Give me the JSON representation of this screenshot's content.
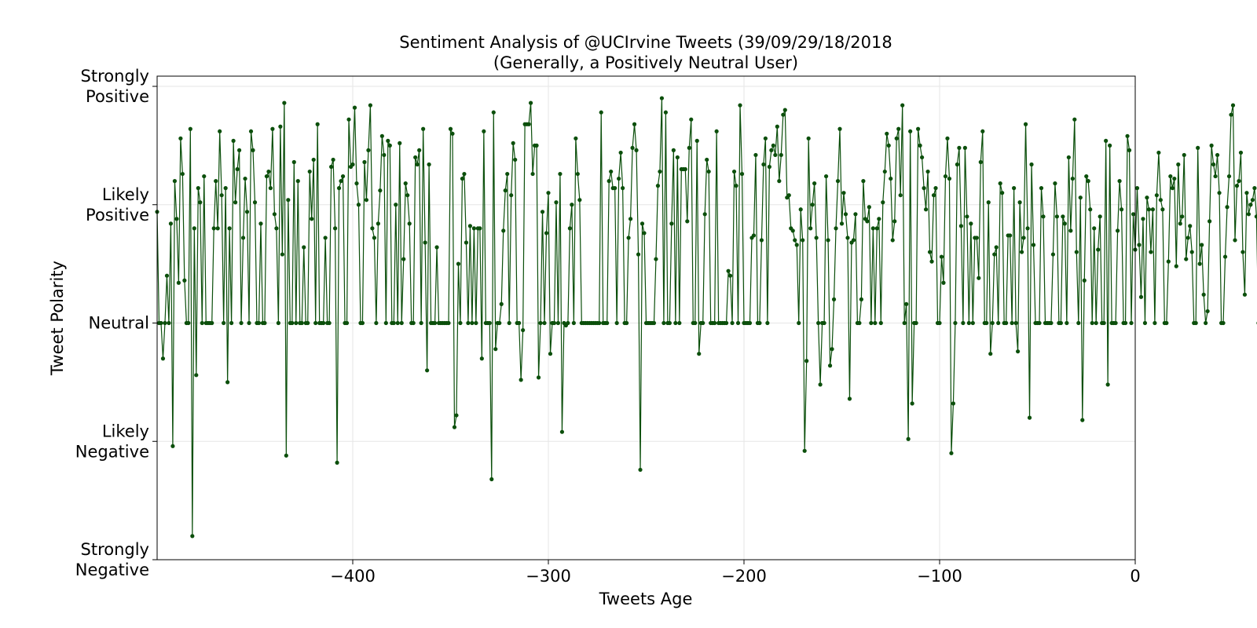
{
  "chart_data": {
    "type": "line",
    "title": "Sentiment Analysis of @UCIrvine Tweets (39/09/29/18/2018",
    "subtitle": "(Generally, a Positively Neutral User)",
    "xlabel": "Tweets Age",
    "ylabel": "Tweet Polarity",
    "xlim": [
      -500,
      0
    ],
    "ylim": [
      -1,
      1
    ],
    "grid": true,
    "line_color": "#0b4f0b",
    "x_ticks": [
      {
        "value": -400,
        "label": "−400"
      },
      {
        "value": -300,
        "label": "−300"
      },
      {
        "value": -200,
        "label": "−200"
      },
      {
        "value": -100,
        "label": "−100"
      },
      {
        "value": 0,
        "label": "0"
      }
    ],
    "y_ticks": [
      {
        "value": 1,
        "lines": [
          "Strongly",
          "Positive"
        ]
      },
      {
        "value": 0.5,
        "lines": [
          "Likely",
          "Positive"
        ]
      },
      {
        "value": 0,
        "lines": [
          "Neutral"
        ]
      },
      {
        "value": -0.5,
        "lines": [
          "Likely",
          "Negative"
        ]
      },
      {
        "value": -1,
        "lines": [
          "Strongly",
          "Negative"
        ]
      }
    ],
    "series": [
      {
        "x_start": -500,
        "x_step": 1,
        "values": [
          0.47,
          0,
          0,
          -0.15,
          0,
          0.2,
          0,
          0.42,
          -0.52,
          0.6,
          0.44,
          0.17,
          0.78,
          0.63,
          0.18,
          0,
          0,
          0.82,
          -0.9,
          0.4,
          -0.22,
          0.57,
          0.51,
          0,
          0.62,
          0,
          0,
          0,
          0,
          0.4,
          0.6,
          0.4,
          0.81,
          0.54,
          0,
          0.57,
          -0.25,
          0.4,
          0,
          0.77,
          0.51,
          0.65,
          0.73,
          0,
          0.36,
          0.61,
          0.47,
          0,
          0.81,
          0.73,
          0.51,
          0,
          0,
          0.42,
          0,
          0,
          0.62,
          0.64,
          0.57,
          0.82,
          0.46,
          0.4,
          0,
          0.83,
          0.29,
          0.93,
          -0.56,
          0.52,
          0,
          0,
          0.68,
          0,
          0.6,
          0,
          0,
          0.32,
          0,
          0,
          0.64,
          0.44,
          0.69,
          0,
          0.84,
          0,
          0,
          0,
          0.36,
          0,
          0,
          0.66,
          0.69,
          0.4,
          -0.59,
          0.57,
          0.6,
          0.62,
          0,
          0,
          0.86,
          0.66,
          0.67,
          0.91,
          0.59,
          0.5,
          0,
          0,
          0.68,
          0.52,
          0.73,
          0.92,
          0.4,
          0.36,
          0,
          0.42,
          0.56,
          0.79,
          0.71,
          0,
          0.77,
          0.75,
          0,
          0,
          0.5,
          0,
          0.76,
          0,
          0.27,
          0.59,
          0.54,
          0.42,
          0,
          0,
          0.7,
          0.67,
          0.73,
          0,
          0.82,
          0.34,
          -0.2,
          0.67,
          0,
          0,
          0,
          0.32,
          0,
          0,
          0,
          0,
          0,
          0,
          0.82,
          0.8,
          -0.44,
          -0.39,
          0.25,
          0,
          0.61,
          0.63,
          0.34,
          0,
          0.41,
          0,
          0.4,
          0,
          0.4,
          0.4,
          -0.15,
          0.81,
          0,
          0,
          0,
          -0.66,
          0.89,
          -0.11,
          0,
          0,
          0.08,
          0.39,
          0.56,
          0.63,
          0,
          0.54,
          0.76,
          0.69,
          0,
          0,
          -0.24,
          -0.03,
          0.84,
          0.84,
          0.84,
          0.93,
          0.63,
          0.75,
          0.75,
          -0.23,
          0,
          0.47,
          0,
          0.38,
          0.55,
          -0.13,
          0,
          0,
          0.51,
          0,
          0.63,
          -0.46,
          0,
          -0.01,
          0,
          0.4,
          0.5,
          0,
          0.78,
          0.63,
          0.52,
          0,
          0,
          0,
          0,
          0,
          0,
          0,
          0,
          0,
          0,
          0.89,
          0,
          0,
          0,
          0.6,
          0.64,
          0.57,
          0.57,
          0,
          0.61,
          0.72,
          0.57,
          0,
          0,
          0.36,
          0.44,
          0.74,
          0.84,
          0.73,
          0.29,
          -0.62,
          0.42,
          0.38,
          0,
          0,
          0,
          0,
          0,
          0.27,
          0.58,
          0.64,
          0.95,
          0,
          0.89,
          0,
          0,
          0.42,
          0.73,
          0,
          0.7,
          0,
          0.65,
          0.65,
          0.65,
          0.43,
          0.74,
          0.86,
          0,
          0,
          0.77,
          -0.13,
          0,
          0,
          0.46,
          0.69,
          0.64,
          0,
          0,
          0,
          0.81,
          0,
          0,
          0,
          0,
          0,
          0.22,
          0.2,
          0,
          0.64,
          0.58,
          0,
          0.92,
          0.63,
          0,
          0,
          0,
          0,
          0.36,
          0.37,
          0.71,
          0,
          0,
          0.35,
          0.67,
          0.78,
          0,
          0.66,
          0.73,
          0.75,
          0.71,
          0.83,
          0.6,
          0.71,
          0.88,
          0.9,
          0.53,
          0.54,
          0.4,
          0.39,
          0.35,
          0.33,
          0,
          0.48,
          0.35,
          -0.54,
          -0.16,
          0.78,
          0.4,
          0.5,
          0.59,
          0.36,
          0,
          -0.26,
          0,
          0,
          0.62,
          0.35,
          -0.18,
          -0.11,
          0.1,
          0.4,
          0.6,
          0.82,
          0.42,
          0.55,
          0.46,
          0.36,
          -0.32,
          0.34,
          0.35,
          0.46,
          0,
          0,
          0.1,
          0.6,
          0.44,
          0.43,
          0.49,
          0,
          0.4,
          0,
          0.4,
          0.44,
          0,
          0.51,
          0.64,
          0.8,
          0.75,
          0.61,
          0.35,
          0.43,
          0.78,
          0.82,
          0.54,
          0.92,
          0,
          0.08,
          -0.49,
          0.81,
          -0.34,
          0,
          0,
          0.82,
          0.75,
          0.7,
          0.57,
          0.48,
          0.64,
          0.3,
          0.26,
          0.54,
          0.57,
          0,
          0,
          0.28,
          0.17,
          0.62,
          0.78,
          0.61,
          -0.55,
          -0.34,
          0,
          0.67,
          0.74,
          0.41,
          0,
          0.74,
          0.45,
          0,
          0.42,
          0,
          0.36,
          0.36,
          0.19,
          0.68,
          0.81,
          0,
          0,
          0.51,
          -0.13,
          0,
          0.29,
          0.32,
          0,
          0.59,
          0.55,
          0,
          0,
          0.37,
          0.37,
          0,
          0.57,
          0,
          -0.12,
          0.51,
          0.3,
          0.36,
          0.84,
          0.4,
          -0.4,
          0.67,
          0.33,
          0,
          0,
          0,
          0.57,
          0.45,
          0,
          0,
          0,
          0,
          0.29,
          0.59,
          0.45,
          0,
          0,
          0.45,
          0.42,
          0,
          0.7,
          0.39,
          0.61,
          0.86,
          0.3,
          0,
          0.53,
          -0.41,
          0.18,
          0.62,
          0.6,
          0.48,
          0,
          0.4,
          0,
          0.31,
          0.45,
          0,
          0,
          0.77,
          -0.26,
          0.75,
          0,
          0,
          0,
          0.39,
          0.6,
          0.48,
          0,
          0,
          0.79,
          0.73,
          0,
          0.46,
          0.31,
          0.57,
          0.33,
          0.11,
          0.44,
          0,
          0.53,
          0.48,
          0.3,
          0.48,
          0,
          0.54,
          0.72,
          0.52,
          0.48,
          0,
          0,
          0.26,
          0.62,
          0.57,
          0.61,
          0.24,
          0.67,
          0.42,
          0.45,
          0.71,
          0.27,
          0.36,
          0.41,
          0.3,
          0,
          0,
          0.74,
          0.25,
          0.33,
          0.12,
          0,
          0.05,
          0.43,
          0.75,
          0.67,
          0.62,
          0.71,
          0.55,
          0,
          0,
          0.28,
          0.49,
          0.62,
          0.88,
          0.92,
          0.35,
          0.58,
          0.6,
          0.72,
          0.3,
          0.12,
          0.55,
          0.46,
          0.5,
          0.52,
          0.57,
          0.45,
          0,
          0.31,
          0.18,
          0.33,
          0.44,
          0.52,
          0.47,
          0,
          0.68,
          -0.13,
          0.64,
          0.38,
          0.67,
          0.51,
          0,
          -0.22,
          0.24,
          0.4,
          0.62,
          0.47,
          0.37,
          0.49,
          0.51,
          0.71,
          0.55,
          0,
          0.55,
          0.71
        ]
      }
    ]
  }
}
